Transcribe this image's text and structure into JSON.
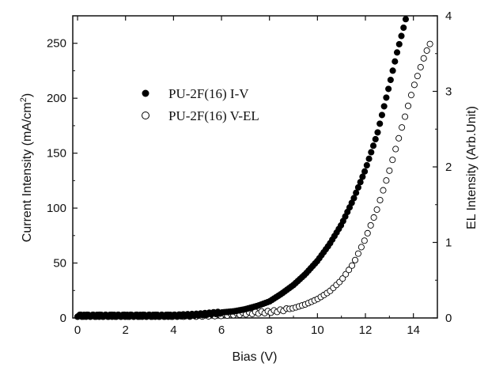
{
  "chart_data": {
    "type": "scatter",
    "xlabel": "Bias (V)",
    "ylabel_left_main": "Current Intensity (mA/cm",
    "ylabel_left_sup": "2",
    "ylabel_left_tail": ")",
    "ylabel_right": "EL Intensity (Arb.Unit)",
    "xlim": [
      -0.2,
      15.0
    ],
    "ylim_left": [
      0,
      275
    ],
    "ylim_right": [
      0,
      4.0
    ],
    "xticks": [
      0,
      2,
      4,
      6,
      8,
      10,
      12,
      14
    ],
    "yticks_left": [
      0,
      50,
      100,
      150,
      200,
      250
    ],
    "yticks_right": [
      0,
      1,
      2,
      3,
      4
    ],
    "legend_position": "upper-left",
    "grid": false,
    "series": [
      {
        "name": "PU-2F(16) I-V",
        "axis": "left",
        "marker": "filled-circle",
        "color": "#000000",
        "x": [
          0.0,
          1.0,
          2.0,
          3.0,
          4.0,
          5.0,
          5.5,
          6.0,
          6.5,
          7.0,
          7.5,
          8.0,
          8.5,
          9.0,
          9.5,
          10.0,
          10.5,
          11.0,
          11.5,
          12.0,
          12.5,
          13.0,
          13.3,
          13.6,
          13.75
        ],
        "y": [
          2,
          2,
          2,
          2,
          2,
          3,
          4,
          5,
          6,
          8,
          11,
          15,
          22,
          30,
          40,
          52,
          67,
          85,
          108,
          135,
          168,
          212,
          240,
          265,
          278
        ]
      },
      {
        "name": "PU-2F(16) V-EL",
        "axis": "right",
        "marker": "open-circle",
        "color": "#000000",
        "x": [
          0.0,
          1.0,
          2.0,
          3.0,
          4.0,
          5.0,
          6.0,
          7.0,
          8.0,
          8.5,
          9.0,
          9.5,
          10.0,
          10.5,
          11.0,
          11.5,
          12.0,
          12.5,
          13.0,
          13.5,
          14.0,
          14.5,
          14.8
        ],
        "y": [
          0.03,
          0.03,
          0.03,
          0.03,
          0.03,
          0.03,
          0.04,
          0.06,
          0.08,
          0.1,
          0.13,
          0.18,
          0.25,
          0.35,
          0.5,
          0.72,
          1.05,
          1.45,
          1.95,
          2.5,
          3.05,
          3.5,
          3.7
        ]
      }
    ]
  }
}
